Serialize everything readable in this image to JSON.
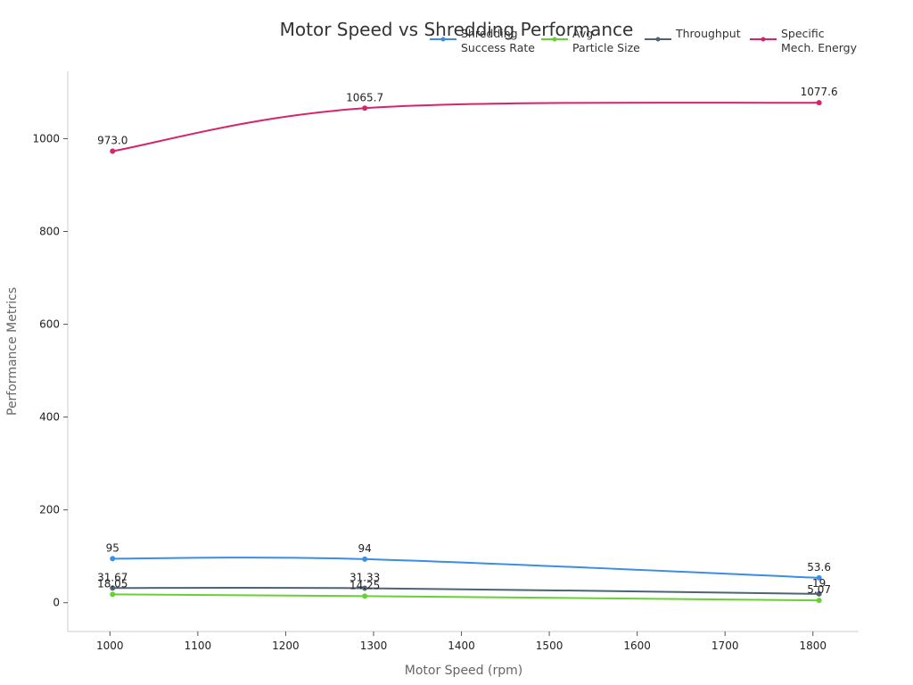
{
  "chart_data": {
    "type": "line",
    "title": "Motor Speed vs Shredding Performance",
    "xlabel": "Motor Speed (rpm)",
    "ylabel": "Performance Metrics",
    "xlim": [
      952,
      1852
    ],
    "ylim": [
      -62,
      1145
    ],
    "x_ticks": [
      1000,
      1100,
      1200,
      1300,
      1400,
      1500,
      1600,
      1700,
      1800
    ],
    "y_ticks": [
      0,
      200,
      400,
      600,
      800,
      1000
    ],
    "grid": false,
    "legend_position": "top-right",
    "x": [
      1003,
      1290,
      1807
    ],
    "series": [
      {
        "name": "Shredding Success Rate",
        "legend_lines": [
          "Shredding",
          "Success Rate"
        ],
        "color": "#3a8ee6",
        "values": [
          95,
          94,
          53.6
        ],
        "labels": [
          "95",
          "94",
          "53.6"
        ]
      },
      {
        "name": "Avg Particle Size",
        "legend_lines": [
          "Avg",
          "Particle Size"
        ],
        "color": "#66d132",
        "values": [
          18.05,
          14.25,
          5.07
        ],
        "labels": [
          "18.05",
          "14.25",
          "5.07"
        ]
      },
      {
        "name": "Throughput",
        "legend_lines": [
          "Throughput"
        ],
        "color": "#4d6474",
        "values": [
          31.67,
          31.33,
          19
        ],
        "labels": [
          "31.67",
          "31.33",
          "19"
        ]
      },
      {
        "name": "Specific Mech. Energy",
        "legend_lines": [
          "Specific",
          "Mech. Energy"
        ],
        "color": "#d6246a",
        "values": [
          973.0,
          1065.7,
          1077.6
        ],
        "labels": [
          "973.0",
          "1065.7",
          "1077.6"
        ]
      }
    ]
  }
}
